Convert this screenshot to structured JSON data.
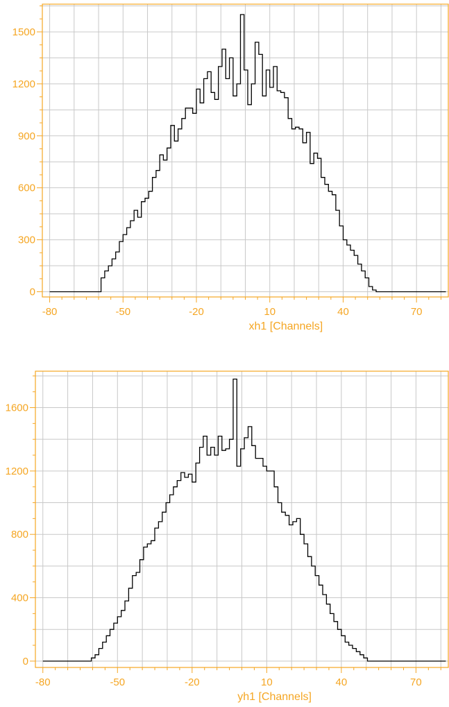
{
  "colors": {
    "axis": "#f5a623",
    "grid": "#c8c8c8",
    "line": "#000000",
    "background": "#ffffff"
  },
  "chart_data": [
    {
      "type": "step",
      "xlabel": "xh1 [Channels]",
      "ylabel": "",
      "title": "",
      "xlim": [
        -83,
        83
      ],
      "ylim": [
        -30,
        1660
      ],
      "xticks": [
        -80,
        -50,
        -20,
        10,
        40,
        70
      ],
      "yticks": [
        0,
        300,
        600,
        900,
        1200,
        1500
      ],
      "grid": true,
      "bin_width": 1.5,
      "x": [
        -80,
        -78.5,
        -77,
        -75.5,
        -74,
        -72.5,
        -71,
        -69.5,
        -68,
        -66.5,
        -65,
        -63.5,
        -62,
        -60.5,
        -59,
        -57.5,
        -56,
        -54.5,
        -53,
        -51.5,
        -50,
        -48.5,
        -47,
        -45.5,
        -44,
        -42.5,
        -41,
        -39.5,
        -38,
        -36.5,
        -35,
        -33.5,
        -32,
        -30.5,
        -29,
        -27.5,
        -26,
        -24.5,
        -23,
        -21.5,
        -20,
        -18.5,
        -17,
        -15.5,
        -14,
        -12.5,
        -11,
        -9.5,
        -8,
        -6.5,
        -5,
        -3.5,
        -2,
        -0.5,
        1,
        2.5,
        4,
        5.5,
        7,
        8.5,
        10,
        11.5,
        13,
        14.5,
        16,
        17.5,
        19,
        20.5,
        22,
        23.5,
        25,
        26.5,
        28,
        29.5,
        31,
        32.5,
        34,
        35.5,
        37,
        38.5,
        40,
        41.5,
        43,
        44.5,
        46,
        47.5,
        49,
        50.5,
        52,
        53.5,
        55,
        56.5,
        58,
        59.5,
        61,
        62.5,
        64,
        65.5,
        67,
        68.5,
        70,
        71.5,
        73,
        74.5,
        76,
        77.5,
        79,
        80.5
      ],
      "values": [
        0,
        0,
        0,
        0,
        0,
        0,
        0,
        0,
        0,
        0,
        0,
        0,
        0,
        0,
        80,
        120,
        150,
        190,
        230,
        290,
        330,
        370,
        410,
        470,
        430,
        520,
        540,
        580,
        660,
        700,
        790,
        760,
        830,
        960,
        870,
        940,
        1000,
        1060,
        1060,
        1030,
        1170,
        1090,
        1230,
        1270,
        1150,
        1110,
        1300,
        1400,
        1230,
        1350,
        1130,
        1200,
        1600,
        1280,
        1080,
        1200,
        1440,
        1370,
        1130,
        1280,
        1180,
        1300,
        1160,
        1150,
        1120,
        1000,
        940,
        950,
        940,
        860,
        920,
        740,
        800,
        770,
        660,
        620,
        580,
        560,
        470,
        380,
        300,
        270,
        240,
        210,
        160,
        120,
        80,
        30,
        10,
        0,
        0,
        0,
        0,
        0,
        0,
        0,
        0,
        0,
        0,
        0,
        0,
        0,
        0,
        0,
        0,
        0,
        0,
        0
      ]
    },
    {
      "type": "step",
      "xlabel": "yh1 [Channels]",
      "ylabel": "",
      "title": "",
      "xlim": [
        -83,
        83
      ],
      "ylim": [
        -40,
        1830
      ],
      "xticks": [
        -80,
        -50,
        -20,
        10,
        40,
        70
      ],
      "yticks": [
        0,
        400,
        800,
        1200,
        1600
      ],
      "grid": true,
      "bin_width": 1.5,
      "x": [
        -80,
        -78.5,
        -77,
        -75.5,
        -74,
        -72.5,
        -71,
        -69.5,
        -68,
        -66.5,
        -65,
        -63.5,
        -62,
        -60.5,
        -59,
        -57.5,
        -56,
        -54.5,
        -53,
        -51.5,
        -50,
        -48.5,
        -47,
        -45.5,
        -44,
        -42.5,
        -41,
        -39.5,
        -38,
        -36.5,
        -35,
        -33.5,
        -32,
        -30.5,
        -29,
        -27.5,
        -26,
        -24.5,
        -23,
        -21.5,
        -20,
        -18.5,
        -17,
        -15.5,
        -14,
        -12.5,
        -11,
        -9.5,
        -8,
        -6.5,
        -5,
        -3.5,
        -2,
        -0.5,
        1,
        2.5,
        4,
        5.5,
        7,
        8.5,
        10,
        11.5,
        13,
        14.5,
        16,
        17.5,
        19,
        20.5,
        22,
        23.5,
        25,
        26.5,
        28,
        29.5,
        31,
        32.5,
        34,
        35.5,
        37,
        38.5,
        40,
        41.5,
        43,
        44.5,
        46,
        47.5,
        49,
        50.5,
        52,
        53.5,
        55,
        56.5,
        58,
        59.5,
        61,
        62.5,
        64,
        65.5,
        67,
        68.5,
        70,
        71.5,
        73,
        74.5,
        76,
        77.5,
        79,
        80.5
      ],
      "values": [
        0,
        0,
        0,
        0,
        0,
        0,
        0,
        0,
        0,
        0,
        0,
        0,
        0,
        20,
        40,
        80,
        120,
        160,
        200,
        240,
        280,
        320,
        380,
        460,
        540,
        560,
        640,
        720,
        740,
        760,
        840,
        880,
        940,
        1000,
        1050,
        1100,
        1140,
        1190,
        1160,
        1180,
        1130,
        1250,
        1350,
        1420,
        1300,
        1350,
        1300,
        1420,
        1330,
        1340,
        1400,
        1780,
        1230,
        1340,
        1410,
        1480,
        1360,
        1280,
        1280,
        1230,
        1200,
        1200,
        1100,
        1000,
        940,
        920,
        860,
        880,
        900,
        800,
        740,
        660,
        600,
        540,
        480,
        420,
        360,
        300,
        250,
        200,
        160,
        120,
        100,
        80,
        60,
        40,
        20,
        0,
        0,
        0,
        0,
        0,
        0,
        0,
        0,
        0,
        0,
        0,
        0,
        0,
        0,
        0,
        0,
        0,
        0,
        0,
        0,
        0
      ]
    }
  ]
}
